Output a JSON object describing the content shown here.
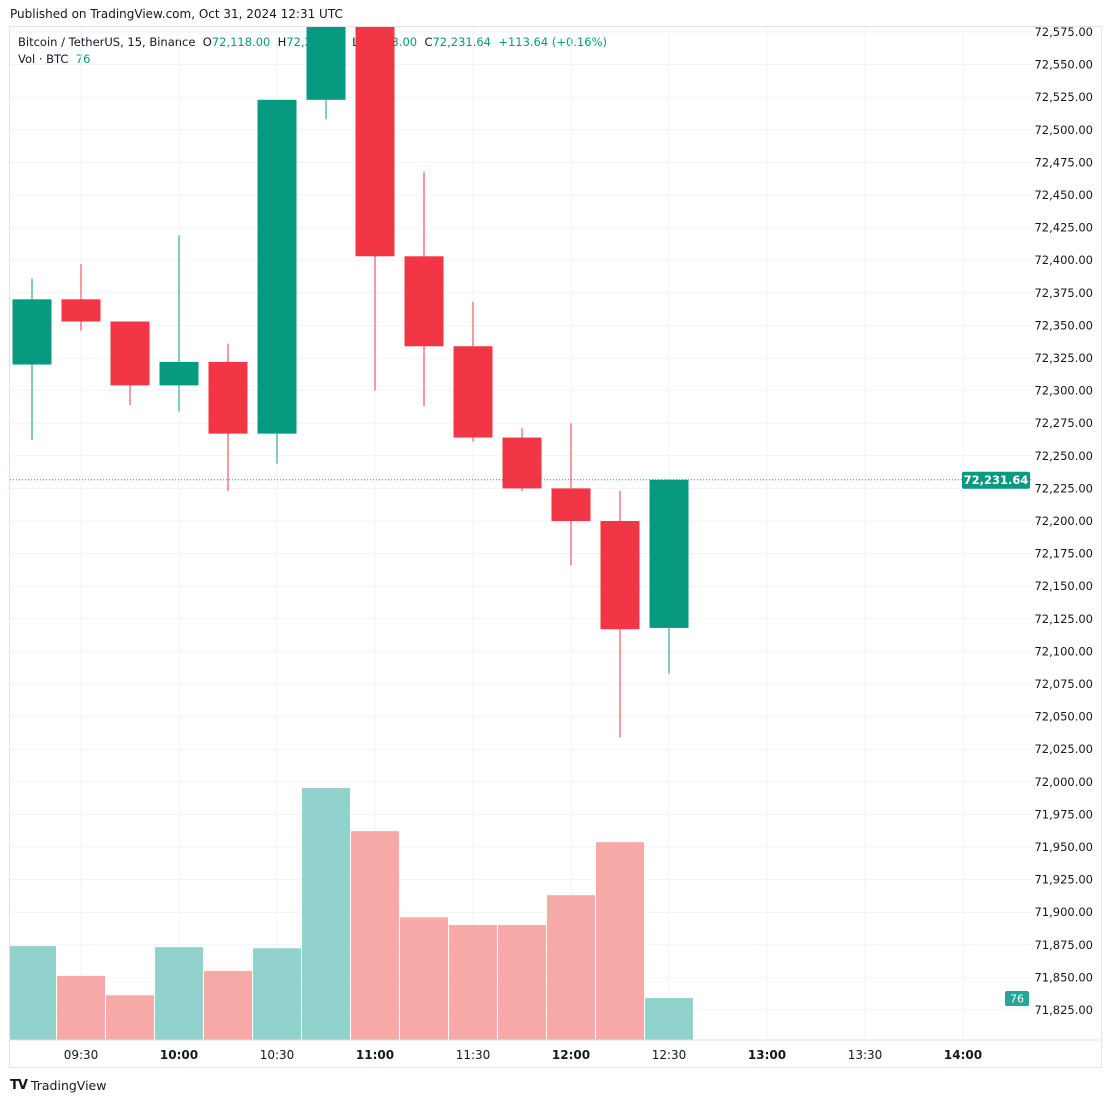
{
  "header": {
    "published": "Published on TradingView.com, Oct 31, 2024 12:31 UTC"
  },
  "legend": {
    "symbol": "Bitcoin / TetherUS, 15, Binance",
    "o_label": "O",
    "o": "72,118.00",
    "h_label": "H",
    "h": "72,231.64",
    "l_label": "L",
    "l": "72,083.00",
    "c_label": "C",
    "c": "72,231.64",
    "change": "+113.64 (+0.16%)",
    "vol_label": "Vol · BTC",
    "vol": "76"
  },
  "footer": {
    "brand": "TradingView",
    "logo_text": "TV"
  },
  "colors": {
    "up": "#089981",
    "down": "#F23645",
    "vol_up": "#92D2CC",
    "vol_down": "#F7A9A7",
    "grid": "#f0f3fa"
  },
  "chart_data": {
    "type": "candlestick",
    "x": [
      "09:15",
      "09:30",
      "09:45",
      "10:00",
      "10:15",
      "10:30",
      "10:45",
      "11:00",
      "11:15",
      "11:30",
      "11:45",
      "12:00",
      "12:15",
      "12:30"
    ],
    "open": [
      72320,
      72370,
      72353,
      72304,
      72322,
      72267,
      72523,
      72590,
      72403,
      72334,
      72264,
      72225,
      72200,
      72118
    ],
    "high": [
      72386,
      72397,
      72353,
      72419,
      72336,
      72523,
      72600,
      72590,
      72468,
      72368,
      72271,
      72275,
      72223,
      72231.64
    ],
    "low": [
      72262,
      72346,
      72289,
      72284,
      72223,
      72244,
      72508,
      72300,
      72288,
      72261,
      72223,
      72166,
      72034,
      72083
    ],
    "close": [
      72370,
      72353,
      72304,
      72322,
      72267,
      72523,
      72590,
      72403,
      72334,
      72264,
      72225,
      72200,
      72117,
      72231.64
    ],
    "volume": [
      170,
      116,
      81,
      168,
      125,
      166,
      456,
      378,
      222,
      208,
      208,
      262,
      358,
      76
    ],
    "ylim": [
      71825,
      72575
    ],
    "tick_step": 25,
    "last_price_label": "72,231.64",
    "last_price": 72231.64,
    "last_volume_label": "76",
    "x_ticks": [
      {
        "label": "09:30",
        "bold": false
      },
      {
        "label": "10:00",
        "bold": true
      },
      {
        "label": "10:30",
        "bold": false
      },
      {
        "label": "11:00",
        "bold": true
      },
      {
        "label": "11:30",
        "bold": false
      },
      {
        "label": "12:00",
        "bold": true
      },
      {
        "label": "12:30",
        "bold": false
      },
      {
        "label": "13:00",
        "bold": true
      },
      {
        "label": "13:30",
        "bold": false
      },
      {
        "label": "14:00",
        "bold": true
      }
    ],
    "grid": true
  }
}
